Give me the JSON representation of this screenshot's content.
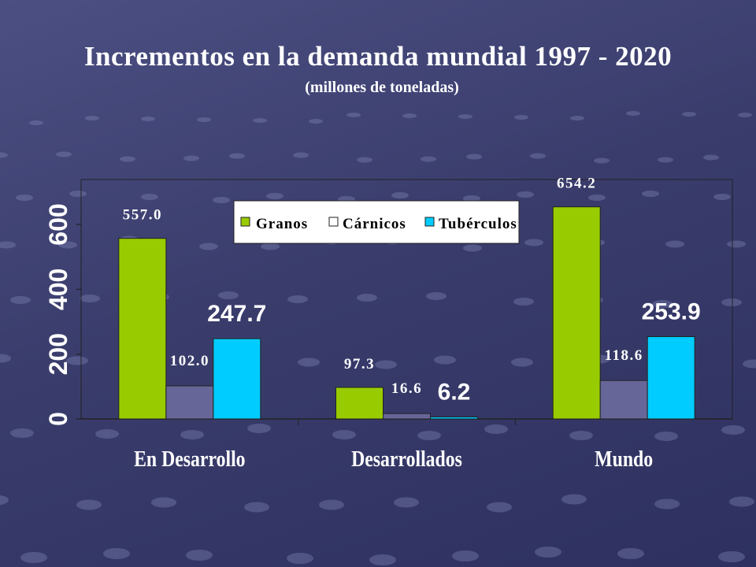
{
  "title": "Incrementos en la demanda mundial 1997 - 2020",
  "subtitle": "(millones de toneladas)",
  "chart_data": {
    "type": "bar",
    "title": "Incrementos en la demanda mundial 1997 - 2020",
    "subtitle": "(millones de toneladas)",
    "xlabel": "",
    "ylabel": "",
    "ylim": [
      0,
      700
    ],
    "yticks": [
      "0",
      "200",
      "400",
      "600"
    ],
    "ytick_values": [
      0,
      200,
      400,
      600
    ],
    "categories": [
      "En Desarrollo",
      "Desarrollados",
      "Mundo"
    ],
    "series": [
      {
        "name": "Granos",
        "color": "#99cc00",
        "values": [
          557.0,
          97.3,
          654.2
        ],
        "labels": [
          "557.0",
          "97.3",
          "654.2"
        ]
      },
      {
        "name": "Cárnicos",
        "color": "#666699",
        "values": [
          102.0,
          16.6,
          118.6
        ],
        "labels": [
          "102.0",
          "16.6",
          "118.6"
        ]
      },
      {
        "name": "Tubérculos",
        "color": "#00ccff",
        "values": [
          247.7,
          6.2,
          253.9
        ],
        "labels": [
          "247.7",
          "6.2",
          "253.9"
        ]
      }
    ],
    "legend_position": "top-center",
    "grid": false
  }
}
